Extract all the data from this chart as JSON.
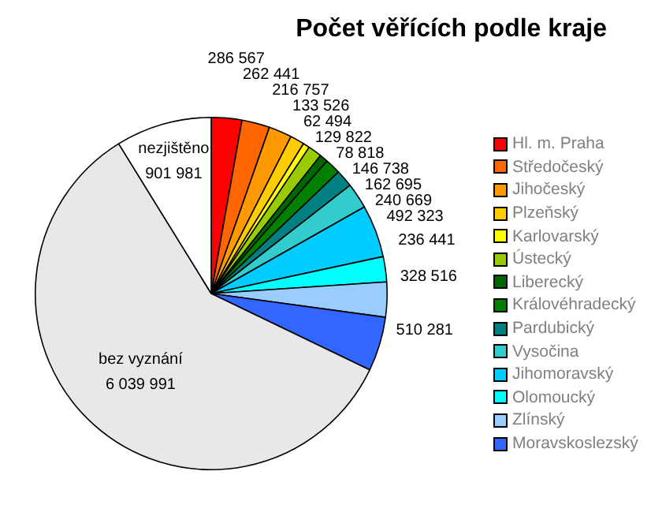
{
  "chart_data": {
    "type": "pie",
    "title": "Počet věřících podle kraje",
    "categories": [
      "Hl. m. Praha",
      "Středočeský",
      "Jihočeský",
      "Plzeňský",
      "Karlovarský",
      "Ústecký",
      "Liberecký",
      "Královéhradecký",
      "Pardubický",
      "Vysočina",
      "Jihomoravský",
      "Olomoucký",
      "Zlínský",
      "Moravskoslezský",
      "bez vyznání",
      "nezjištěno"
    ],
    "values": [
      286567,
      262441,
      216757,
      133526,
      62494,
      129822,
      78818,
      146738,
      162695,
      240669,
      492323,
      236441,
      328516,
      510281,
      6039991,
      901981
    ],
    "value_labels": [
      "286 567",
      "262 441",
      "216 757",
      "133 526",
      "62 494",
      "129 822",
      "78 818",
      "146 738",
      "162 695",
      "240 669",
      "492 323",
      "236 441",
      "328 516",
      "510 281",
      "6 039 991",
      "901 981"
    ],
    "colors": [
      "#ff0000",
      "#ff6600",
      "#ff9900",
      "#ffcc00",
      "#ffff00",
      "#99cc00",
      "#006600",
      "#008000",
      "#008080",
      "#33cccc",
      "#00ccff",
      "#00ffff",
      "#99ccff",
      "#3366ff",
      "#e8e8e8",
      "#ffffff"
    ],
    "legend": "right"
  }
}
